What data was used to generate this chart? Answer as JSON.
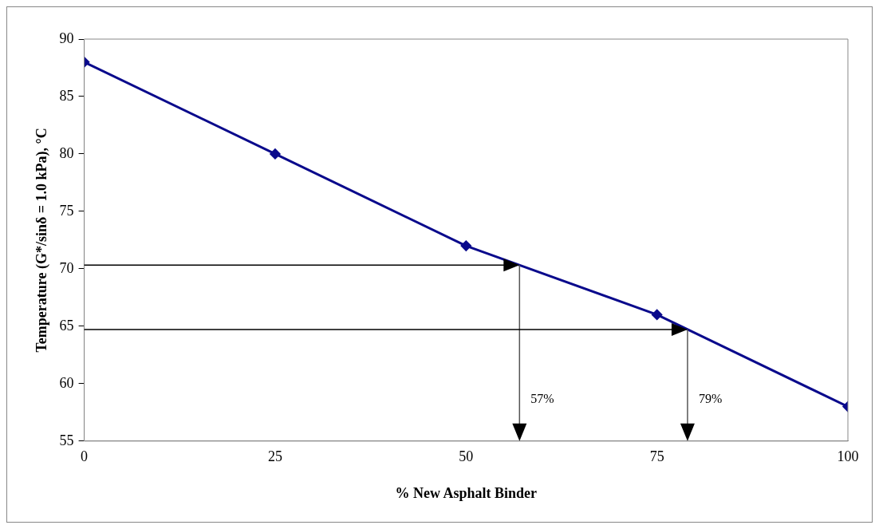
{
  "chart_data": {
    "type": "line",
    "xlabel": "% New Asphalt Binder",
    "ylabel": "Temperature (G*/sinδ = 1.0 kPa), °C",
    "x": [
      0,
      25,
      50,
      75,
      100
    ],
    "series": [
      {
        "color": "#0a0a8c",
        "values": [
          88,
          80,
          72,
          66,
          58
        ]
      }
    ],
    "xlim": [
      0,
      100
    ],
    "xticks": [
      0,
      25,
      50,
      75,
      100
    ],
    "ylim": [
      55,
      90
    ],
    "yticks": [
      55,
      60,
      65,
      70,
      75,
      80,
      85,
      90
    ],
    "grid": false,
    "legend": false,
    "marker": "diamond",
    "line_style": "solid",
    "ref_lines": [
      {
        "axis": "x",
        "value": 57,
        "label": "57%"
      },
      {
        "axis": "x",
        "value": 79,
        "label": "79%"
      }
    ]
  }
}
